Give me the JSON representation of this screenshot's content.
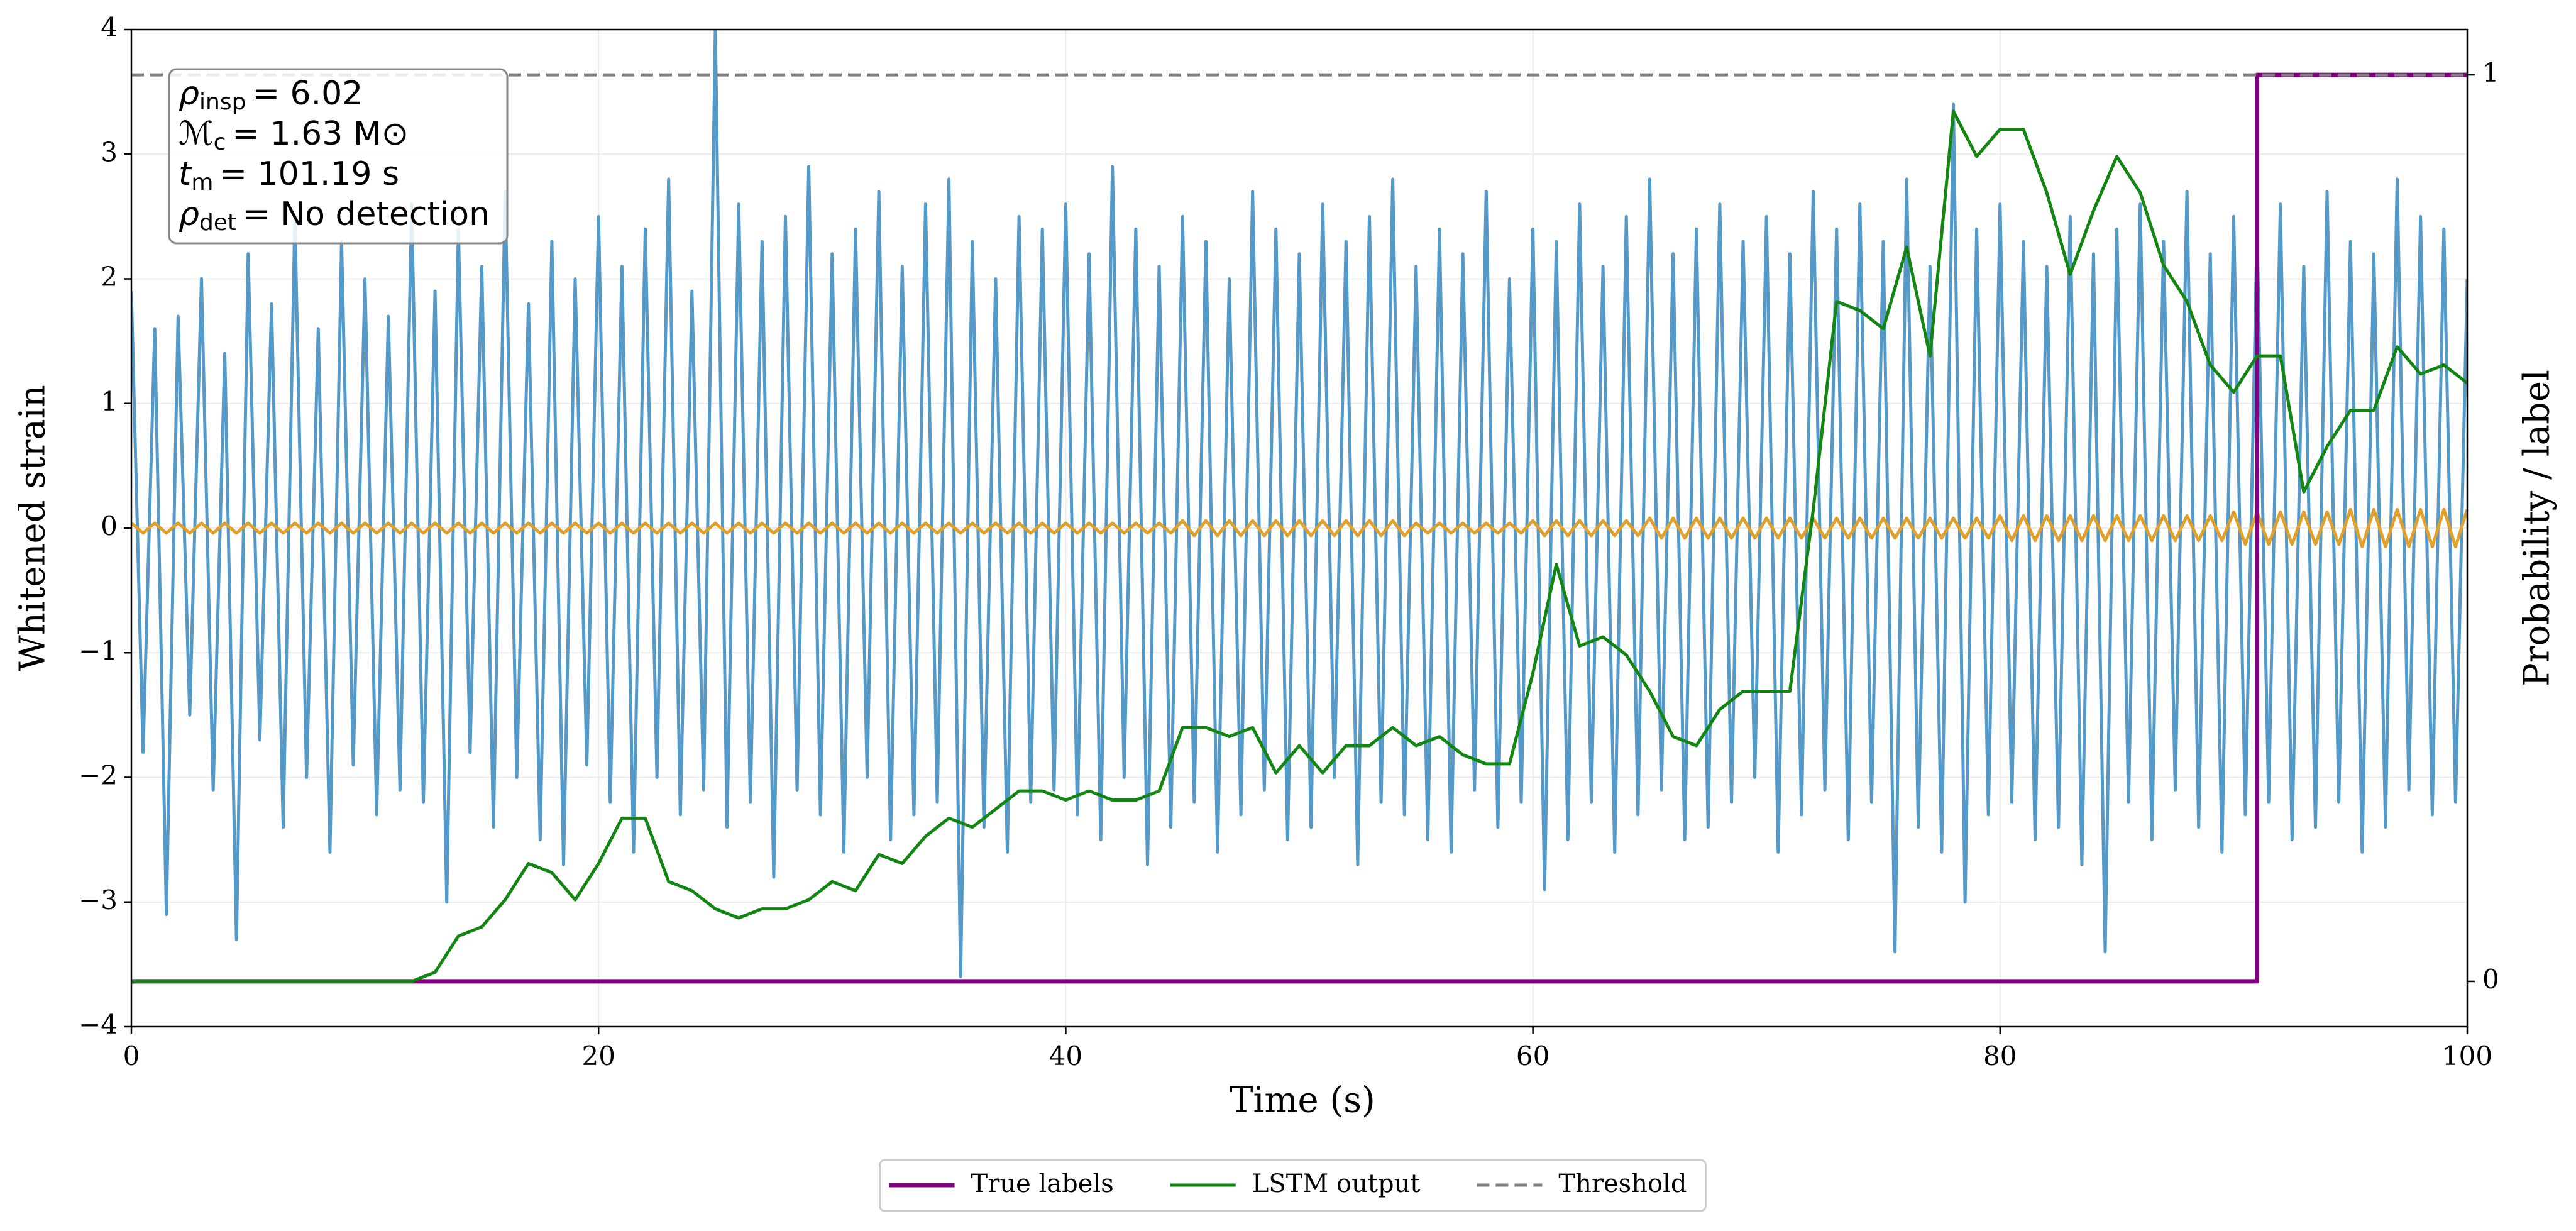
{
  "chart_data": {
    "type": "line",
    "xlabel": "Time (s)",
    "ylabel": "Whitened strain",
    "y2label": "Probability / label",
    "xlim": [
      0,
      100
    ],
    "xticks": [
      0,
      20,
      40,
      60,
      80,
      100
    ],
    "ylim": [
      -4,
      4
    ],
    "yticks": [
      {
        "value": -4,
        "label": "−4"
      },
      {
        "value": -3,
        "label": "−3"
      },
      {
        "value": -2,
        "label": "−2"
      },
      {
        "value": -1,
        "label": "−1"
      },
      0,
      1,
      2,
      3,
      4
    ],
    "y2lim": [
      -0.05,
      1.05
    ],
    "y2ticks": [
      0,
      1
    ],
    "grid": true,
    "legend": "bottom",
    "annotation": [
      {
        "symbol": "ρ",
        "sub": "insp",
        "rest": "= 6.02"
      },
      {
        "symbol": "ℳ",
        "sub": "c",
        "rest": "= 1.63 M⊙"
      },
      {
        "symbol": "t",
        "sub": "m",
        "rest": "= 101.19 s"
      },
      {
        "symbol": "ρ",
        "sub": "det",
        "rest": "= No detection"
      }
    ],
    "x": [
      0,
      0.5,
      1,
      1.5,
      2,
      2.5,
      3,
      3.5,
      4,
      4.5,
      5,
      5.5,
      6,
      6.5,
      7,
      7.5,
      8,
      8.5,
      9,
      9.5,
      10,
      10.5,
      11,
      11.5,
      12,
      12.5,
      13,
      13.5,
      14,
      14.5,
      15,
      15.5,
      16,
      16.5,
      17,
      17.5,
      18,
      18.5,
      19,
      19.5,
      20,
      20.5,
      21,
      21.5,
      22,
      22.5,
      23,
      23.5,
      24,
      24.5,
      25,
      25.5,
      26,
      26.5,
      27,
      27.5,
      28,
      28.5,
      29,
      29.5,
      30,
      30.5,
      31,
      31.5,
      32,
      32.5,
      33,
      33.5,
      34,
      34.5,
      35,
      35.5,
      36,
      36.5,
      37,
      37.5,
      38,
      38.5,
      39,
      39.5,
      40,
      40.5,
      41,
      41.5,
      42,
      42.5,
      43,
      43.5,
      44,
      44.5,
      45,
      45.5,
      46,
      46.5,
      47,
      47.5,
      48,
      48.5,
      49,
      49.5,
      50,
      50.5,
      51,
      51.5,
      52,
      52.5,
      53,
      53.5,
      54,
      54.5,
      55,
      55.5,
      56,
      56.5,
      57,
      57.5,
      58,
      58.5,
      59,
      59.5,
      60,
      60.5,
      61,
      61.5,
      62,
      62.5,
      63,
      63.5,
      64,
      64.5,
      65,
      65.5,
      66,
      66.5,
      67,
      67.5,
      68,
      68.5,
      69,
      69.5,
      70,
      70.5,
      71,
      71.5,
      72,
      72.5,
      73,
      73.5,
      74,
      74.5,
      75,
      75.5,
      76,
      76.5,
      77,
      77.5,
      78,
      78.5,
      79,
      79.5,
      80,
      80.5,
      81,
      81.5,
      82,
      82.5,
      83,
      83.5,
      84,
      84.5,
      85,
      85.5,
      86,
      86.5,
      87,
      87.5,
      88,
      88.5,
      89,
      89.5,
      90,
      90.5,
      91,
      91.5,
      92,
      92.5,
      93,
      93.5,
      94,
      94.5,
      95,
      95.5,
      96,
      96.5,
      97,
      97.5,
      98,
      98.5,
      99,
      99.5,
      100
    ],
    "series": [
      {
        "color": "#5599c8",
        "axis": "y",
        "values": [
          1.9,
          -1.8,
          1.6,
          -3.1,
          1.7,
          -1.5,
          2.0,
          -2.1,
          1.4,
          -3.3,
          2.2,
          -1.7,
          1.8,
          -2.4,
          2.5,
          -2.0,
          1.6,
          -2.6,
          2.3,
          -1.9,
          2.0,
          -2.3,
          1.7,
          -2.1,
          2.6,
          -2.2,
          1.9,
          -3.0,
          2.4,
          -1.8,
          2.1,
          -2.4,
          2.7,
          -2.0,
          1.8,
          -2.5,
          2.3,
          -2.7,
          2.0,
          -1.9,
          2.5,
          -2.2,
          2.1,
          -2.6,
          2.4,
          -2.0,
          2.8,
          -2.3,
          1.9,
          -2.1,
          4.0,
          -2.4,
          2.6,
          -2.2,
          2.3,
          -2.8,
          2.5,
          -2.1,
          2.9,
          -2.3,
          2.2,
          -2.6,
          2.4,
          -2.0,
          2.7,
          -2.5,
          2.1,
          -2.3,
          2.6,
          -2.2,
          2.8,
          -3.6,
          2.3,
          -2.4,
          2.0,
          -2.6,
          2.5,
          -2.2,
          2.4,
          -2.1,
          2.6,
          -2.3,
          2.2,
          -2.5,
          2.9,
          -2.0,
          2.4,
          -2.7,
          2.1,
          -2.4,
          2.5,
          -2.2,
          2.3,
          -2.6,
          2.0,
          -2.3,
          2.7,
          -2.1,
          2.4,
          -2.5,
          2.2,
          -2.4,
          2.6,
          -2.0,
          2.3,
          -2.7,
          2.5,
          -2.2,
          2.8,
          -2.3,
          2.1,
          -2.5,
          2.4,
          -2.6,
          2.2,
          -2.1,
          2.7,
          -2.4,
          2.0,
          -2.2,
          2.4,
          -2.9,
          2.3,
          -2.5,
          2.6,
          -2.2,
          2.1,
          -2.6,
          2.5,
          -2.3,
          2.8,
          -2.1,
          2.2,
          -2.5,
          2.4,
          -2.4,
          2.6,
          -2.2,
          2.3,
          -2.0,
          2.5,
          -2.6,
          2.2,
          -2.3,
          2.7,
          -2.1,
          2.4,
          -2.5,
          2.6,
          -2.2,
          2.3,
          -3.4,
          2.8,
          -2.4,
          2.1,
          -2.6,
          3.4,
          -3.0,
          2.4,
          -2.3,
          2.6,
          -2.2,
          2.3,
          -2.5,
          2.1,
          -2.4,
          2.5,
          -2.7,
          2.2,
          -3.4,
          2.4,
          -2.2,
          2.6,
          -2.5,
          2.3,
          -2.1,
          2.7,
          -2.4,
          2.2,
          -2.6,
          2.5,
          -2.3,
          2.4,
          -2.2,
          2.6,
          -2.5,
          2.1,
          -2.4,
          2.7,
          -2.2,
          2.3,
          -2.6,
          2.2,
          -2.4,
          2.8,
          -2.1,
          2.5,
          -2.3,
          2.4,
          -2.2,
          2.0
        ]
      },
      {
        "color": "#e0a02a",
        "axis": "y",
        "values": [
          0.04,
          -0.04,
          0.04,
          -0.04,
          0.04,
          -0.04,
          0.04,
          -0.04,
          0.04,
          -0.04,
          0.04,
          -0.04,
          0.04,
          -0.04,
          0.04,
          -0.04,
          0.04,
          -0.04,
          0.04,
          -0.04,
          0.04,
          -0.04,
          0.04,
          -0.04,
          0.04,
          -0.04,
          0.04,
          -0.04,
          0.04,
          -0.04,
          0.04,
          -0.04,
          0.04,
          -0.04,
          0.04,
          -0.04,
          0.04,
          -0.04,
          0.04,
          -0.04,
          0.04,
          -0.04,
          0.04,
          -0.04,
          0.04,
          -0.04,
          0.04,
          -0.04,
          0.04,
          -0.04,
          0.04,
          -0.04,
          0.04,
          -0.04,
          0.04,
          -0.04,
          0.04,
          -0.04,
          0.04,
          -0.04,
          0.04,
          -0.04,
          0.04,
          -0.04,
          0.04,
          -0.04,
          0.04,
          -0.04,
          0.04,
          -0.04,
          0.04,
          -0.04,
          0.04,
          -0.04,
          0.04,
          -0.04,
          0.04,
          -0.04,
          0.04,
          -0.04,
          0.04,
          -0.04,
          0.04,
          -0.04,
          0.04,
          -0.04,
          0.04,
          -0.04,
          0.04,
          -0.04,
          0.06,
          -0.06,
          0.06,
          -0.06,
          0.06,
          -0.06,
          0.06,
          -0.06,
          0.06,
          -0.06,
          0.06,
          -0.06,
          0.06,
          -0.06,
          0.06,
          -0.06,
          0.06,
          -0.06,
          0.06,
          -0.06,
          0.04,
          -0.04,
          0.04,
          -0.04,
          0.04,
          -0.04,
          0.04,
          -0.04,
          0.04,
          -0.04,
          0.06,
          -0.06,
          0.06,
          -0.06,
          0.06,
          -0.06,
          0.06,
          -0.06,
          0.06,
          -0.06,
          0.08,
          -0.08,
          0.08,
          -0.08,
          0.08,
          -0.08,
          0.08,
          -0.08,
          0.08,
          -0.08,
          0.08,
          -0.08,
          0.08,
          -0.08,
          0.08,
          -0.08,
          0.08,
          -0.08,
          0.08,
          -0.08,
          0.08,
          -0.08,
          0.08,
          -0.08,
          0.08,
          -0.08,
          0.08,
          -0.08,
          0.08,
          -0.08,
          0.1,
          -0.1,
          0.1,
          -0.1,
          0.1,
          -0.1,
          0.1,
          -0.1,
          0.1,
          -0.1,
          0.1,
          -0.1,
          0.1,
          -0.1,
          0.1,
          -0.1,
          0.1,
          -0.1,
          0.1,
          -0.1,
          0.13,
          -0.13,
          0.13,
          -0.13,
          0.13,
          -0.13,
          0.13,
          -0.13,
          0.13,
          -0.13,
          0.15,
          -0.15,
          0.15,
          -0.15,
          0.15,
          -0.15,
          0.15,
          -0.15,
          0.15,
          -0.15,
          0.15
        ]
      },
      {
        "name": "True labels",
        "color": "#800080",
        "axis": "y2",
        "x": [
          0,
          91,
          91,
          100
        ],
        "values": [
          0,
          0,
          1,
          1
        ]
      },
      {
        "name": "LSTM output",
        "color": "#138513",
        "axis": "y2",
        "x": [
          0,
          1,
          2,
          3,
          4,
          5,
          6,
          7,
          8,
          9,
          10,
          11,
          12,
          13,
          14,
          15,
          16,
          17,
          18,
          19,
          20,
          21,
          22,
          23,
          24,
          25,
          26,
          27,
          28,
          29,
          30,
          31,
          32,
          33,
          34,
          35,
          36,
          37,
          38,
          39,
          40,
          41,
          42,
          43,
          44,
          45,
          46,
          47,
          48,
          49,
          50,
          51,
          52,
          53,
          54,
          55,
          56,
          57,
          58,
          59,
          60,
          61,
          62,
          63,
          64,
          65,
          66,
          67,
          68,
          69,
          70,
          71,
          72,
          73,
          74,
          75,
          76,
          77,
          78,
          79,
          80,
          81,
          82,
          83,
          84,
          85,
          86,
          87,
          88,
          89,
          90,
          91,
          92,
          93,
          94,
          95,
          96,
          97,
          98,
          99,
          100
        ],
        "values": [
          0,
          0,
          0,
          0,
          0,
          0,
          0,
          0,
          0,
          0,
          0,
          0,
          0,
          0.01,
          0.05,
          0.06,
          0.09,
          0.13,
          0.12,
          0.09,
          0.13,
          0.18,
          0.18,
          0.11,
          0.1,
          0.08,
          0.07,
          0.08,
          0.08,
          0.09,
          0.11,
          0.1,
          0.14,
          0.13,
          0.16,
          0.18,
          0.17,
          0.19,
          0.21,
          0.21,
          0.2,
          0.21,
          0.2,
          0.2,
          0.21,
          0.28,
          0.28,
          0.27,
          0.28,
          0.23,
          0.26,
          0.23,
          0.26,
          0.26,
          0.28,
          0.26,
          0.27,
          0.25,
          0.24,
          0.24,
          0.34,
          0.46,
          0.37,
          0.38,
          0.36,
          0.32,
          0.27,
          0.26,
          0.3,
          0.32,
          0.32,
          0.32,
          0.52,
          0.75,
          0.74,
          0.72,
          0.81,
          0.69,
          0.96,
          0.91,
          0.94,
          0.94,
          0.87,
          0.78,
          0.85,
          0.91,
          0.87,
          0.79,
          0.75,
          0.68,
          0.65,
          0.69,
          0.69,
          0.54,
          0.59,
          0.63,
          0.63,
          0.7,
          0.67,
          0.68,
          0.66
        ]
      },
      {
        "name": "Threshold",
        "color": "#808080",
        "axis": "y2",
        "linestyle": "dashed",
        "x": [
          0,
          100
        ],
        "values": [
          1,
          1
        ]
      }
    ]
  }
}
